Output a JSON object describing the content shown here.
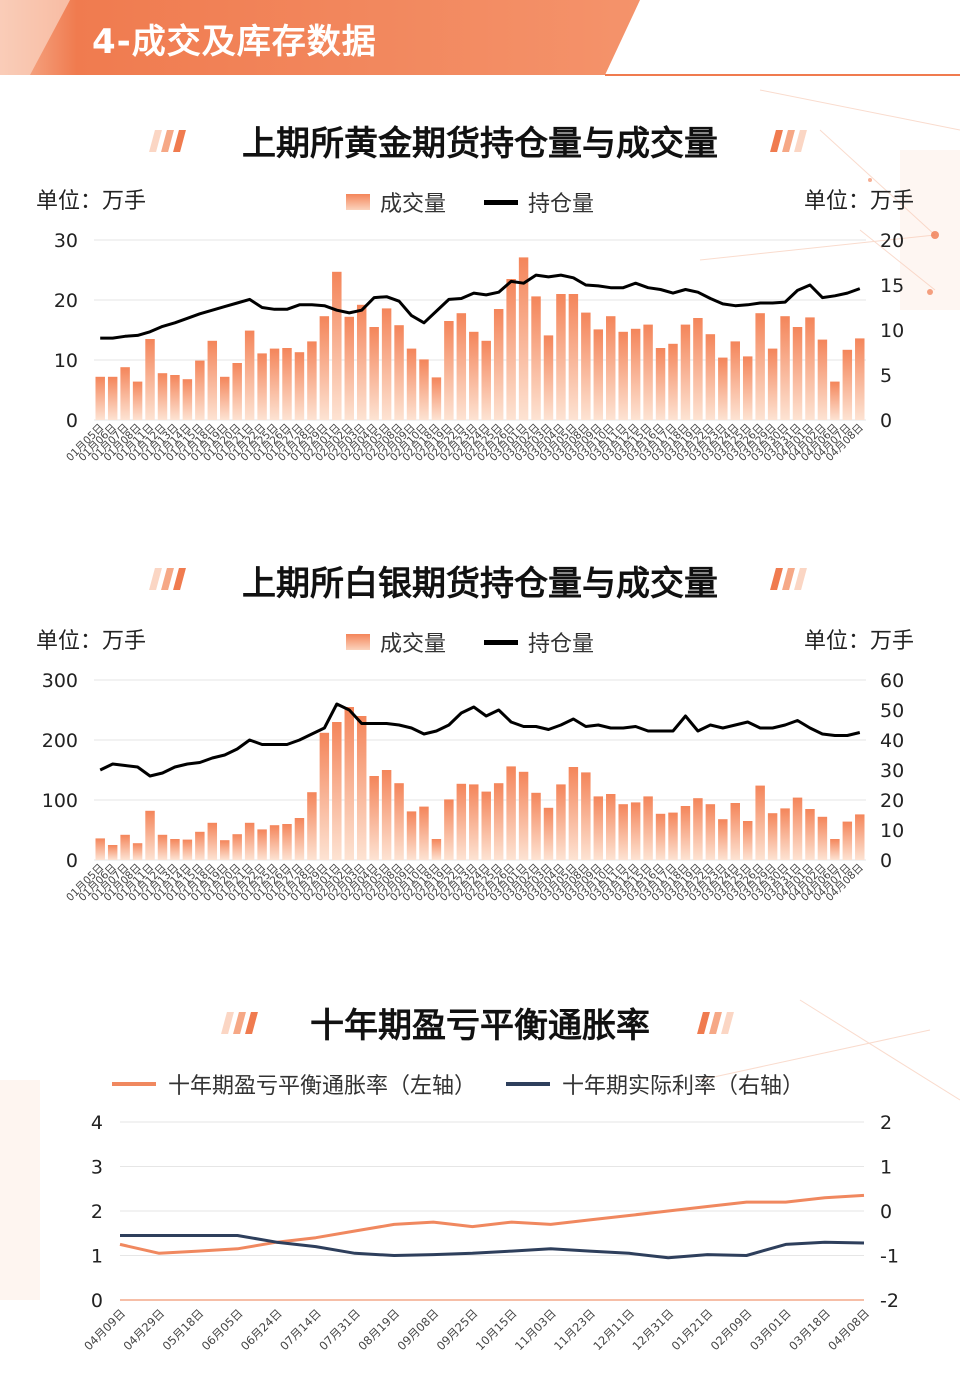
{
  "header": {
    "title": "4-成交及库存数据"
  },
  "colors": {
    "accent": "#f07b4f",
    "bar_top": "#f4855a",
    "bar_bottom": "#fde3d3",
    "line_dark": "#000000",
    "navy": "#2e3f5c"
  },
  "charts": [
    {
      "title": "上期所黄金期货持仓量与成交量",
      "unit_left": "单位：万手",
      "unit_right": "单位：万手",
      "legend": [
        "成交量",
        "持仓量"
      ]
    },
    {
      "title": "上期所白银期货持仓量与成交量",
      "unit_left": "单位：万手",
      "unit_right": "单位：万手",
      "legend": [
        "成交量",
        "持仓量"
      ]
    },
    {
      "title": "十年期盈亏平衡通胀率",
      "legend": [
        "十年期盈亏平衡通胀率（左轴）",
        "十年期实际利率（右轴）"
      ]
    }
  ],
  "chart_data": [
    {
      "type": "bar",
      "title": "上期所黄金期货持仓量与成交量",
      "categories": [
        "01月05日",
        "01月06日",
        "01月07日",
        "01月08日",
        "01月11日",
        "01月12日",
        "01月13日",
        "01月14日",
        "01月15日",
        "01月18日",
        "01月19日",
        "01月20日",
        "01月21日",
        "01月22日",
        "01月25日",
        "01月26日",
        "01月27日",
        "01月28日",
        "01月29日",
        "02月01日",
        "02月02日",
        "02月03日",
        "02月04日",
        "02月05日",
        "02月08日",
        "02月09日",
        "02月10日",
        "02月18日",
        "02月19日",
        "02月22日",
        "02月23日",
        "02月24日",
        "02月25日",
        "02月26日",
        "03月01日",
        "03月02日",
        "03月03日",
        "03月04日",
        "03月05日",
        "03月08日",
        "03月09日",
        "03月10日",
        "03月11日",
        "03月12日",
        "03月15日",
        "03月16日",
        "03月17日",
        "03月18日",
        "03月19日",
        "03月22日",
        "03月23日",
        "03月24日",
        "03月25日",
        "03月26日",
        "03月29日",
        "03月30日",
        "03月31日",
        "04月01日",
        "04月02日",
        "04月06日",
        "04月07日",
        "04月08日"
      ],
      "series": [
        {
          "name": "成交量",
          "axis": "left",
          "type": "bar",
          "values": [
            7.2,
            7.2,
            8.8,
            6.4,
            13.5,
            7.8,
            7.5,
            6.8,
            9.9,
            13.2,
            7.2,
            9.5,
            14.9,
            11.1,
            11.9,
            12.0,
            11.3,
            13.1,
            17.3,
            24.7,
            17.2,
            19.2,
            15.5,
            18.6,
            15.8,
            11.9,
            10.1,
            7.1,
            16.5,
            17.8,
            14.7,
            13.2,
            18.5,
            23.5,
            27.1,
            20.6,
            14.1,
            21.0,
            21.0,
            17.9,
            15.1,
            17.3,
            14.7,
            15.2,
            15.9,
            12.0,
            12.7,
            15.9,
            17.0,
            14.3,
            10.4,
            13.1,
            10.6,
            17.8,
            11.9,
            17.3,
            15.5,
            17.1,
            13.4,
            6.4,
            11.7,
            13.6
          ]
        },
        {
          "name": "持仓量",
          "axis": "right",
          "type": "line",
          "values": [
            9.1,
            9.1,
            9.3,
            9.4,
            9.8,
            10.4,
            10.8,
            11.3,
            11.8,
            12.2,
            12.6,
            13.0,
            13.4,
            12.5,
            12.3,
            12.3,
            12.8,
            12.8,
            12.7,
            12.2,
            11.9,
            12.2,
            13.6,
            13.7,
            13.2,
            11.6,
            10.8,
            12.1,
            13.4,
            13.5,
            14.1,
            13.9,
            14.2,
            15.4,
            15.2,
            16.1,
            15.9,
            16.1,
            15.8,
            15.0,
            14.9,
            14.7,
            14.7,
            15.2,
            14.7,
            14.5,
            14.1,
            14.5,
            14.2,
            13.5,
            12.9,
            12.7,
            12.8,
            13.0,
            13.0,
            13.1,
            14.4,
            15.0,
            13.6,
            13.8,
            14.1,
            14.6
          ]
        }
      ],
      "ylim_left": [
        0,
        30
      ],
      "yticks_left": [
        0,
        10,
        20,
        30
      ],
      "ylim_right": [
        0,
        20
      ],
      "yticks_right": [
        0,
        5,
        10,
        15,
        20
      ],
      "grid": true,
      "legend_position": "top-center"
    },
    {
      "type": "bar",
      "title": "上期所白银期货持仓量与成交量",
      "categories": [
        "01月05日",
        "01月06日",
        "01月07日",
        "01月08日",
        "01月11日",
        "01月12日",
        "01月13日",
        "01月14日",
        "01月15日",
        "01月18日",
        "01月19日",
        "01月20日",
        "01月21日",
        "01月22日",
        "01月25日",
        "01月26日",
        "01月27日",
        "01月28日",
        "01月29日",
        "02月01日",
        "02月02日",
        "02月03日",
        "02月04日",
        "02月05日",
        "02月08日",
        "02月09日",
        "02月10日",
        "02月18日",
        "02月19日",
        "02月22日",
        "02月23日",
        "02月24日",
        "02月25日",
        "02月26日",
        "03月01日",
        "03月02日",
        "03月03日",
        "03月04日",
        "03月05日",
        "03月08日",
        "03月09日",
        "03月10日",
        "03月11日",
        "03月12日",
        "03月15日",
        "03月16日",
        "03月17日",
        "03月18日",
        "03月19日",
        "03月22日",
        "03月23日",
        "03月24日",
        "03月25日",
        "03月26日",
        "03月29日",
        "03月30日",
        "03月31日",
        "04月01日",
        "04月02日",
        "04月06日",
        "04月07日",
        "04月08日"
      ],
      "series": [
        {
          "name": "成交量",
          "axis": "left",
          "type": "bar",
          "values": [
            36,
            25,
            42,
            28,
            82,
            42,
            35,
            34,
            47,
            62,
            33,
            43,
            62,
            51,
            58,
            60,
            70,
            113,
            212,
            230,
            255,
            240,
            140,
            150,
            128,
            81,
            89,
            35,
            101,
            127,
            126,
            114,
            128,
            156,
            147,
            112,
            87,
            126,
            155,
            146,
            106,
            110,
            93,
            96,
            106,
            77,
            79,
            90,
            103,
            93,
            68,
            95,
            65,
            124,
            78,
            86,
            104,
            85,
            72,
            35,
            64,
            76
          ]
        },
        {
          "name": "持仓量",
          "axis": "right",
          "type": "line",
          "values": [
            30,
            32,
            31.5,
            31,
            28,
            29,
            31,
            32,
            32.5,
            34,
            35,
            37,
            40,
            38.5,
            38.5,
            38.5,
            40,
            42,
            44,
            52,
            50,
            45.5,
            45.5,
            45.5,
            45,
            44,
            42,
            43,
            45,
            49,
            51,
            48,
            50,
            46,
            44.5,
            44.5,
            43.5,
            45,
            47,
            44.5,
            45,
            44,
            44,
            44.5,
            43,
            43,
            43,
            48,
            43,
            45,
            44,
            45,
            46,
            44,
            44,
            45,
            46.5,
            44,
            42,
            41.5,
            41.5,
            42.5
          ]
        }
      ],
      "ylim_left": [
        0,
        300
      ],
      "yticks_left": [
        0,
        100,
        200,
        300
      ],
      "ylim_right": [
        0,
        60
      ],
      "yticks_right": [
        0,
        10,
        20,
        30,
        40,
        50,
        60
      ],
      "grid": true,
      "legend_position": "top-center"
    },
    {
      "type": "line",
      "title": "十年期盈亏平衡通胀率",
      "x": [
        "04月09日",
        "04月29日",
        "05月18日",
        "06月05日",
        "06月24日",
        "07月14日",
        "07月31日",
        "08月19日",
        "09月08日",
        "09月25日",
        "10月15日",
        "11月03日",
        "11月23日",
        "12月11日",
        "12月31日",
        "01月21日",
        "02月09日",
        "03月01日",
        "03月18日",
        "04月08日"
      ],
      "series": [
        {
          "name": "十年期盈亏平衡通胀率（左轴）",
          "axis": "left",
          "values": [
            1.25,
            1.05,
            1.1,
            1.15,
            1.3,
            1.4,
            1.55,
            1.7,
            1.75,
            1.65,
            1.75,
            1.7,
            1.8,
            1.9,
            2.0,
            2.1,
            2.2,
            2.2,
            2.3,
            2.35
          ]
        },
        {
          "name": "十年期实际利率（右轴）",
          "axis": "right",
          "values": [
            -0.55,
            -0.55,
            -0.55,
            -0.55,
            -0.7,
            -0.8,
            -0.95,
            -1.0,
            -0.98,
            -0.95,
            -0.9,
            -0.85,
            -0.9,
            -0.95,
            -1.05,
            -0.98,
            -1.0,
            -0.75,
            -0.7,
            -0.72
          ]
        }
      ],
      "ylim_left": [
        0,
        4
      ],
      "yticks_left": [
        0,
        1,
        2,
        3,
        4
      ],
      "ylim_right": [
        -2,
        2
      ],
      "yticks_right": [
        -2,
        -1,
        0,
        1,
        2
      ],
      "grid": true,
      "legend_position": "top-center"
    }
  ]
}
